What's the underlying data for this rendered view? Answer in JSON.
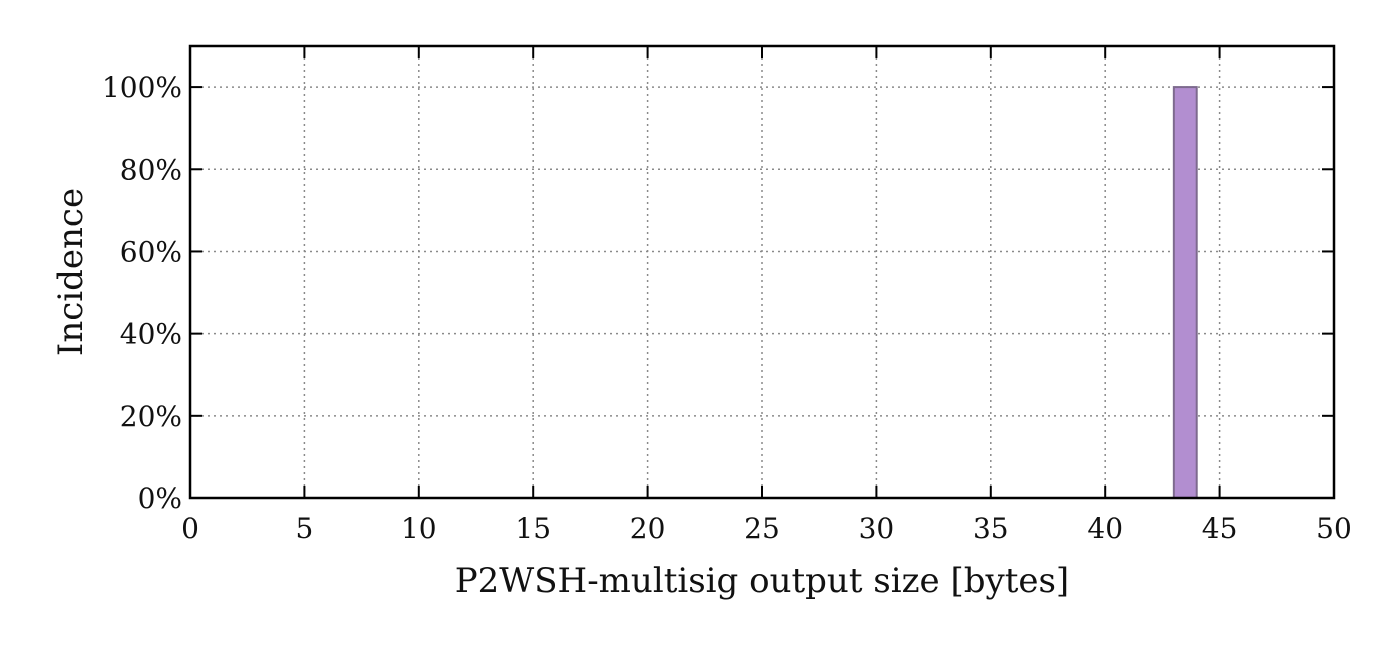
{
  "chart_data": {
    "type": "bar",
    "xlabel": "P2WSH-multisig output size [bytes]",
    "ylabel": "Incidence",
    "xlim": [
      0,
      50
    ],
    "ylim": [
      0,
      110
    ],
    "x_ticks": [
      0,
      5,
      10,
      15,
      20,
      25,
      30,
      35,
      40,
      45,
      50
    ],
    "x_tick_labels": [
      "0",
      "5",
      "10",
      "15",
      "20",
      "25",
      "30",
      "35",
      "40",
      "45",
      "50"
    ],
    "y_ticks": [
      0,
      20,
      40,
      60,
      80,
      100
    ],
    "y_tick_labels": [
      "0%",
      "20%",
      "40%",
      "60%",
      "80%",
      "100%"
    ],
    "grid": true,
    "bars": [
      {
        "x_start": 43,
        "x_end": 44,
        "value": 100
      }
    ],
    "colors": {
      "bar": "#b28ed0",
      "grid": "#8a8a8a",
      "frame": "#000000"
    }
  }
}
